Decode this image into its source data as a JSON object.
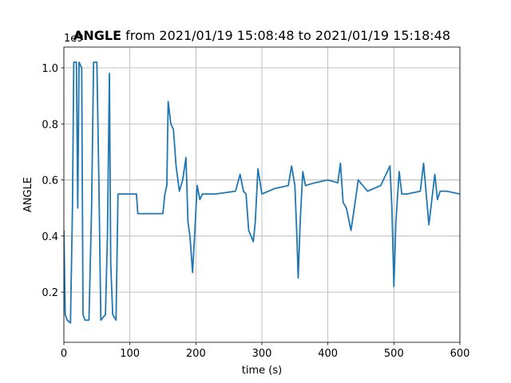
{
  "chart_data": {
    "type": "line",
    "title": {
      "variable": "ANGLE",
      "range": "from 2021/01/19 15:08:48 to 2021/01/19 15:18:48"
    },
    "x_label": "time (s)",
    "y_label": "ANGLE",
    "y_offset_label": "1e9",
    "xlim": [
      0,
      600
    ],
    "xticks": [
      0,
      100,
      200,
      300,
      400,
      500,
      600
    ],
    "ylim": [
      0.021,
      1.074
    ],
    "yticks": [
      0.2,
      0.4,
      0.6,
      0.8,
      {
        "value": 1,
        "label": "1.0"
      }
    ],
    "grid": true,
    "x": [
      0,
      2,
      5,
      10,
      13,
      15,
      19,
      21,
      23,
      27,
      29,
      32,
      38,
      42,
      45,
      50,
      53,
      56,
      63,
      66,
      69,
      71,
      74,
      79,
      82,
      90,
      110,
      112,
      130,
      150,
      153,
      156,
      158,
      162,
      166,
      170,
      175,
      180,
      185,
      188,
      191,
      195,
      198,
      202,
      206,
      210,
      230,
      260,
      267,
      272,
      276,
      280,
      287,
      290,
      294,
      300,
      320,
      340,
      345,
      350,
      353,
      355,
      358,
      362,
      366,
      380,
      400,
      415,
      419,
      423,
      428,
      435,
      440,
      446,
      460,
      480,
      494,
      497,
      500,
      503,
      508,
      512,
      520,
      540,
      545,
      549,
      553,
      556,
      562,
      566,
      570,
      580,
      600
    ],
    "series": [
      {
        "name": "ANGLE",
        "color": "#1f77b4",
        "values": [
          0.42,
          0.12,
          0.1,
          0.09,
          0.5,
          1.02,
          1.02,
          0.5,
          1.02,
          1.0,
          0.12,
          0.1,
          0.1,
          0.5,
          1.02,
          1.02,
          0.6,
          0.1,
          0.12,
          0.4,
          0.98,
          0.3,
          0.12,
          0.1,
          0.55,
          0.55,
          0.55,
          0.48,
          0.48,
          0.48,
          0.55,
          0.58,
          0.88,
          0.8,
          0.78,
          0.65,
          0.56,
          0.6,
          0.68,
          0.45,
          0.4,
          0.27,
          0.4,
          0.58,
          0.53,
          0.55,
          0.55,
          0.56,
          0.62,
          0.56,
          0.55,
          0.42,
          0.38,
          0.45,
          0.64,
          0.55,
          0.57,
          0.58,
          0.65,
          0.58,
          0.4,
          0.25,
          0.45,
          0.63,
          0.58,
          0.59,
          0.6,
          0.59,
          0.66,
          0.52,
          0.5,
          0.42,
          0.5,
          0.6,
          0.56,
          0.58,
          0.65,
          0.5,
          0.22,
          0.45,
          0.63,
          0.55,
          0.55,
          0.56,
          0.66,
          0.55,
          0.44,
          0.5,
          0.62,
          0.53,
          0.56,
          0.56,
          0.55
        ]
      }
    ]
  }
}
